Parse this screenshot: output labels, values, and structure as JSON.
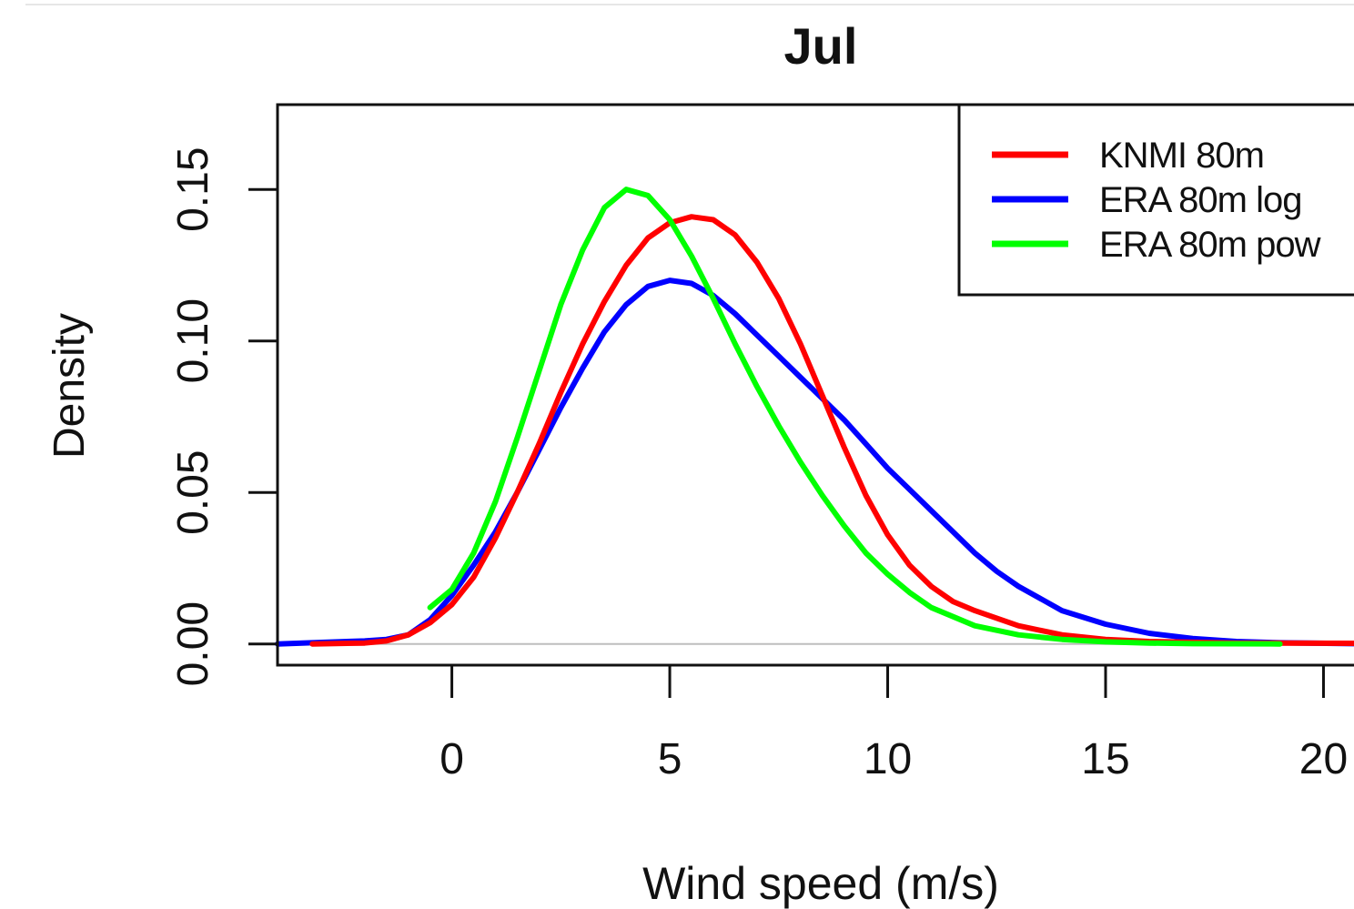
{
  "chart_data": {
    "type": "line",
    "title": "Jul",
    "xlabel": "Wind speed (m/s)",
    "ylabel": "Density",
    "xlim": [
      -4.0,
      20.7
    ],
    "ylim": [
      -0.007,
      0.178
    ],
    "x_ticks": [
      "0",
      "5",
      "10",
      "15",
      "20"
    ],
    "y_ticks": [
      "0.00",
      "0.05",
      "0.10",
      "0.15"
    ],
    "legend_position": "top-right",
    "series": [
      {
        "name": "KNMI 80m",
        "color": "#ff0000",
        "points": [
          [
            -3.2,
            0.0
          ],
          [
            -2,
            0.0003
          ],
          [
            -1.5,
            0.001
          ],
          [
            -1,
            0.003
          ],
          [
            -0.5,
            0.007
          ],
          [
            0,
            0.013
          ],
          [
            0.5,
            0.022
          ],
          [
            1,
            0.035
          ],
          [
            1.5,
            0.05
          ],
          [
            2,
            0.066
          ],
          [
            2.5,
            0.083
          ],
          [
            3,
            0.099
          ],
          [
            3.5,
            0.113
          ],
          [
            4,
            0.125
          ],
          [
            4.5,
            0.134
          ],
          [
            5,
            0.139
          ],
          [
            5.5,
            0.141
          ],
          [
            6,
            0.14
          ],
          [
            6.5,
            0.135
          ],
          [
            7,
            0.126
          ],
          [
            7.5,
            0.114
          ],
          [
            8,
            0.099
          ],
          [
            8.5,
            0.082
          ],
          [
            9,
            0.065
          ],
          [
            9.5,
            0.049
          ],
          [
            10,
            0.036
          ],
          [
            10.5,
            0.026
          ],
          [
            11,
            0.019
          ],
          [
            11.5,
            0.014
          ],
          [
            12,
            0.011
          ],
          [
            13,
            0.006
          ],
          [
            14,
            0.003
          ],
          [
            15,
            0.0015
          ],
          [
            16,
            0.0008
          ],
          [
            18,
            0.0003
          ],
          [
            20.7,
            0.0002
          ]
        ]
      },
      {
        "name": "ERA 80m log",
        "color": "#0000ff",
        "points": [
          [
            -4,
            0.0
          ],
          [
            -3,
            0.0005
          ],
          [
            -2,
            0.001
          ],
          [
            -1.5,
            0.0015
          ],
          [
            -1,
            0.003
          ],
          [
            -0.5,
            0.008
          ],
          [
            0,
            0.016
          ],
          [
            0.5,
            0.026
          ],
          [
            1,
            0.037
          ],
          [
            1.5,
            0.05
          ],
          [
            2,
            0.064
          ],
          [
            2.5,
            0.078
          ],
          [
            3,
            0.091
          ],
          [
            3.5,
            0.103
          ],
          [
            4,
            0.112
          ],
          [
            4.5,
            0.118
          ],
          [
            5,
            0.12
          ],
          [
            5.5,
            0.119
          ],
          [
            6,
            0.115
          ],
          [
            6.5,
            0.109
          ],
          [
            7,
            0.102
          ],
          [
            7.5,
            0.095
          ],
          [
            8,
            0.088
          ],
          [
            8.5,
            0.081
          ],
          [
            9,
            0.074
          ],
          [
            9.5,
            0.066
          ],
          [
            10,
            0.058
          ],
          [
            10.5,
            0.051
          ],
          [
            11,
            0.044
          ],
          [
            11.5,
            0.037
          ],
          [
            12,
            0.03
          ],
          [
            12.5,
            0.024
          ],
          [
            13,
            0.019
          ],
          [
            13.5,
            0.015
          ],
          [
            14,
            0.011
          ],
          [
            15,
            0.0065
          ],
          [
            16,
            0.0035
          ],
          [
            17,
            0.0018
          ],
          [
            18,
            0.0008
          ],
          [
            19,
            0.0004
          ],
          [
            20.7,
            0.0001
          ]
        ]
      },
      {
        "name": "ERA 80m pow",
        "color": "#00ff00",
        "points": [
          [
            -0.5,
            0.012
          ],
          [
            0,
            0.018
          ],
          [
            0.5,
            0.03
          ],
          [
            1,
            0.047
          ],
          [
            1.5,
            0.068
          ],
          [
            2,
            0.09
          ],
          [
            2.5,
            0.112
          ],
          [
            3,
            0.13
          ],
          [
            3.5,
            0.144
          ],
          [
            4,
            0.15
          ],
          [
            4.5,
            0.148
          ],
          [
            5,
            0.14
          ],
          [
            5.5,
            0.128
          ],
          [
            6,
            0.114
          ],
          [
            6.5,
            0.099
          ],
          [
            7,
            0.085
          ],
          [
            7.5,
            0.072
          ],
          [
            8,
            0.06
          ],
          [
            8.5,
            0.049
          ],
          [
            9,
            0.039
          ],
          [
            9.5,
            0.03
          ],
          [
            10,
            0.023
          ],
          [
            10.5,
            0.017
          ],
          [
            11,
            0.012
          ],
          [
            11.5,
            0.009
          ],
          [
            12,
            0.006
          ],
          [
            13,
            0.003
          ],
          [
            14,
            0.0015
          ],
          [
            15,
            0.0007
          ],
          [
            16,
            0.0003
          ],
          [
            17,
            0.0001
          ],
          [
            19,
            0.0
          ]
        ]
      }
    ]
  }
}
